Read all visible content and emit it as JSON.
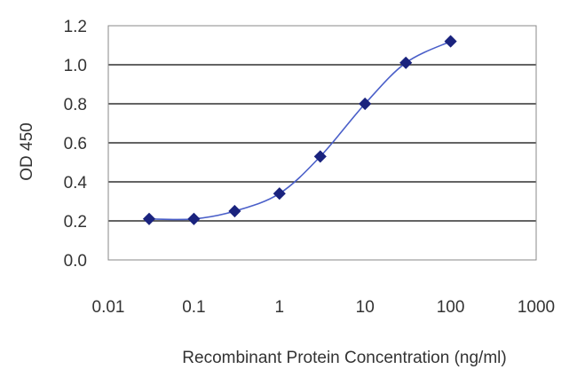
{
  "chart_data": {
    "type": "line",
    "title": "",
    "xlabel": "Recombinant Protein Concentration (ng/ml)",
    "ylabel": "OD 450",
    "x_scale": "log",
    "xlim": [
      0.01,
      1000
    ],
    "ylim": [
      0.0,
      1.2
    ],
    "x_ticks": [
      "0.01",
      "0.1",
      "1",
      "10",
      "100",
      "1000"
    ],
    "y_ticks": [
      "0.0",
      "0.2",
      "0.4",
      "0.6",
      "0.8",
      "1.0",
      "1.2"
    ],
    "grid": "horizontal",
    "legend": "none",
    "series": [
      {
        "x": [
          0.03,
          0.1,
          0.3,
          1,
          3,
          10,
          30,
          100
        ],
        "y": [
          0.21,
          0.21,
          0.25,
          0.34,
          0.53,
          0.8,
          1.01,
          1.12
        ],
        "color": "#1a237e",
        "line_color": "#4a5fc9"
      }
    ]
  }
}
